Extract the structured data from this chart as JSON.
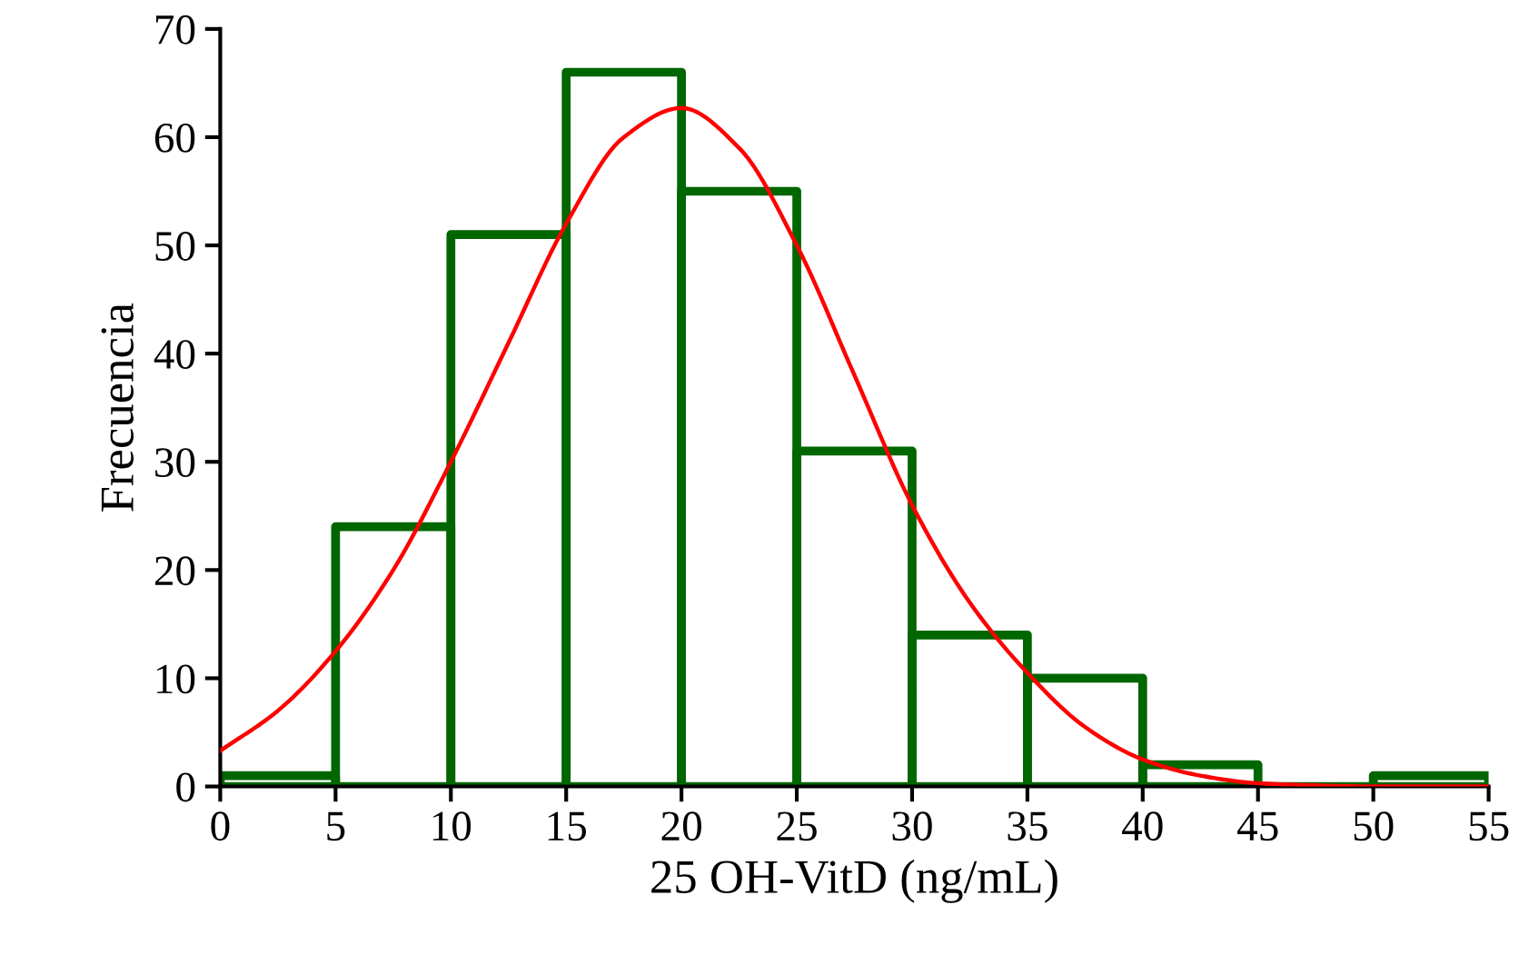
{
  "chart_data": {
    "type": "histogram",
    "xlabel": "25 OH-VitD (ng/mL)",
    "ylabel": "Frecuencia",
    "bins": [
      0,
      5,
      10,
      15,
      20,
      25,
      30,
      35,
      40,
      45,
      50,
      55
    ],
    "values": [
      1,
      24,
      51,
      66,
      55,
      31,
      14,
      10,
      2,
      0,
      1
    ],
    "color": "#006600",
    "series": [
      {
        "type": "line",
        "color": "#ff0000",
        "x": [
          0,
          2.5,
          5,
          7.5,
          10,
          12.5,
          15,
          17.5,
          20,
          22.5,
          25,
          27.5,
          30,
          32.5,
          35,
          37.5,
          40,
          42.5,
          45,
          47.5,
          50,
          55
        ],
        "values": [
          3.3,
          7,
          12.5,
          20,
          30,
          41,
          52,
          60,
          62.7,
          59,
          50,
          38,
          26,
          17,
          10.5,
          5.5,
          2.5,
          1,
          0.3,
          0.1,
          0,
          0
        ]
      }
    ],
    "xlim": [
      0,
      55
    ],
    "xticks": [
      0,
      5,
      10,
      15,
      20,
      25,
      30,
      35,
      40,
      45,
      50,
      55
    ],
    "ylim": [
      0,
      70
    ],
    "yticks": [
      0,
      10,
      20,
      30,
      40,
      50,
      60,
      70
    ],
    "grid": false,
    "legend": false
  }
}
